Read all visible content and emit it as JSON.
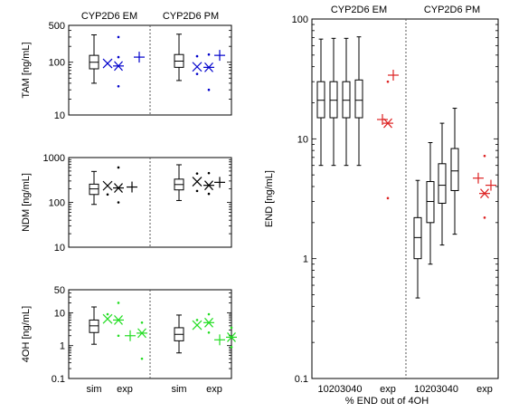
{
  "colors": {
    "tam": "#0000cc",
    "ndm": "#000000",
    "oh": "#22dd22",
    "end": "#dd2222",
    "box": "#000000"
  },
  "chart_data": [
    {
      "id": "tam",
      "type": "box",
      "ylabel": "TAM [ng/mL]",
      "yscale": "log",
      "ylim": [
        10,
        500
      ],
      "yticks": [
        "10",
        "100",
        "500"
      ],
      "yticks_values": [
        10,
        100,
        500
      ],
      "groups": [
        {
          "title": "CYP2D6 EM",
          "sim": {
            "whislo": 40,
            "q1": 75,
            "med": 100,
            "q3": 135,
            "whishi": 330
          },
          "exp": [
            {
              "marker": "x",
              "value": 95,
              "dots": []
            },
            {
              "marker": "star",
              "value": 85,
              "dots": [
                300,
                35,
                125
              ]
            },
            {
              "marker": "plus",
              "value": 125,
              "dots": []
            }
          ]
        },
        {
          "title": "CYP2D6 PM",
          "sim": {
            "whislo": 45,
            "q1": 80,
            "med": 105,
            "q3": 140,
            "whishi": 340
          },
          "exp": [
            {
              "marker": "x",
              "value": 82,
              "dots": [
                130,
                60
              ]
            },
            {
              "marker": "star",
              "value": 80,
              "dots": [
                30,
                140
              ]
            },
            {
              "marker": "plus",
              "value": 135,
              "dots": []
            }
          ]
        }
      ]
    },
    {
      "id": "ndm",
      "type": "box",
      "ylabel": "NDM [ng/mL]",
      "yscale": "log",
      "ylim": [
        10,
        1000
      ],
      "yticks": [
        "10",
        "100",
        "1000"
      ],
      "yticks_values": [
        10,
        100,
        1000
      ],
      "groups": [
        {
          "title": "",
          "sim": {
            "whislo": 90,
            "q1": 150,
            "med": 200,
            "q3": 255,
            "whishi": 490
          },
          "exp": [
            {
              "marker": "x",
              "value": 235,
              "dots": [
                150
              ]
            },
            {
              "marker": "star",
              "value": 210,
              "dots": [
                600,
                100
              ]
            },
            {
              "marker": "plus",
              "value": 220,
              "dots": []
            }
          ]
        },
        {
          "title": "",
          "sim": {
            "whislo": 110,
            "q1": 190,
            "med": 250,
            "q3": 330,
            "whishi": 690
          },
          "exp": [
            {
              "marker": "x",
              "value": 290,
              "dots": [
                440,
                180
              ]
            },
            {
              "marker": "star",
              "value": 240,
              "dots": [
                450,
                155
              ]
            },
            {
              "marker": "plus",
              "value": 280,
              "dots": []
            }
          ]
        }
      ]
    },
    {
      "id": "oh",
      "type": "box",
      "ylabel": "4OH [ng/mL]",
      "yscale": "log",
      "ylim": [
        0.1,
        50
      ],
      "yticks": [
        "0.1",
        "1",
        "10",
        "50"
      ],
      "yticks_values": [
        0.1,
        1,
        10,
        50
      ],
      "xticks": [
        "sim",
        "exp"
      ],
      "groups": [
        {
          "title": "",
          "sim": {
            "whislo": 1.1,
            "q1": 2.5,
            "med": 4,
            "q3": 6,
            "whishi": 15
          },
          "exp": [
            {
              "marker": "x",
              "value": 6.5,
              "dots": [
                9
              ]
            },
            {
              "marker": "star",
              "value": 6,
              "dots": [
                20,
                2
              ]
            },
            {
              "marker": "plus",
              "value": 2,
              "dots": []
            },
            {
              "marker": "star",
              "value": 2.4,
              "dots": [
                5,
                0.4
              ]
            }
          ]
        },
        {
          "title": "",
          "sim": {
            "whislo": 0.6,
            "q1": 1.4,
            "med": 2.2,
            "q3": 3.5,
            "whishi": 8.5
          },
          "exp": [
            {
              "marker": "x",
              "value": 4.2,
              "dots": [
                6
              ]
            },
            {
              "marker": "star",
              "value": 5,
              "dots": [
                9,
                2.5
              ]
            },
            {
              "marker": "plus",
              "value": 1.5,
              "dots": []
            },
            {
              "marker": "star",
              "value": 1.8,
              "dots": [
                3.5,
                0.9
              ]
            }
          ]
        }
      ]
    },
    {
      "id": "end",
      "type": "box",
      "ylabel": "END [ng/mL]",
      "xlabel": "% END out of 4OH",
      "yscale": "log",
      "ylim": [
        0.1,
        100
      ],
      "yticks": [
        "0.1",
        "1",
        "10",
        "100"
      ],
      "yticks_values": [
        0.1,
        1,
        10,
        100
      ],
      "xticks": [
        "10203040",
        "exp",
        "10203040",
        "exp"
      ],
      "groups": [
        {
          "title": "CYP2D6 EM",
          "sims": [
            {
              "whislo": 6,
              "q1": 15,
              "med": 21,
              "q3": 30,
              "whishi": 68
            },
            {
              "whislo": 6,
              "q1": 15,
              "med": 21,
              "q3": 30,
              "whishi": 69
            },
            {
              "whislo": 6,
              "q1": 15,
              "med": 21,
              "q3": 30,
              "whishi": 69
            },
            {
              "whislo": 6,
              "q1": 15,
              "med": 21,
              "q3": 31,
              "whishi": 71
            }
          ],
          "exp": [
            {
              "marker": "plus",
              "value": 14.5,
              "dots": []
            },
            {
              "marker": "star",
              "value": 13.5,
              "dots": [
                30,
                3.2
              ]
            },
            {
              "marker": "plus",
              "value": 34,
              "dots": []
            }
          ]
        },
        {
          "title": "CYP2D6 PM",
          "sims": [
            {
              "whislo": 0.47,
              "q1": 1.0,
              "med": 1.5,
              "q3": 2.2,
              "whishi": 4.5
            },
            {
              "whislo": 0.9,
              "q1": 2.0,
              "med": 3.0,
              "q3": 4.4,
              "whishi": 9.3
            },
            {
              "whislo": 1.3,
              "q1": 2.9,
              "med": 4.1,
              "q3": 6.2,
              "whishi": 13.5
            },
            {
              "whislo": 1.6,
              "q1": 3.7,
              "med": 5.4,
              "q3": 8.3,
              "whishi": 18
            }
          ],
          "exp": [
            {
              "marker": "plus",
              "value": 4.7,
              "dots": []
            },
            {
              "marker": "star",
              "value": 3.5,
              "dots": [
                7.2,
                2.2
              ]
            },
            {
              "marker": "plus",
              "value": 4.1,
              "dots": []
            }
          ]
        }
      ]
    }
  ]
}
